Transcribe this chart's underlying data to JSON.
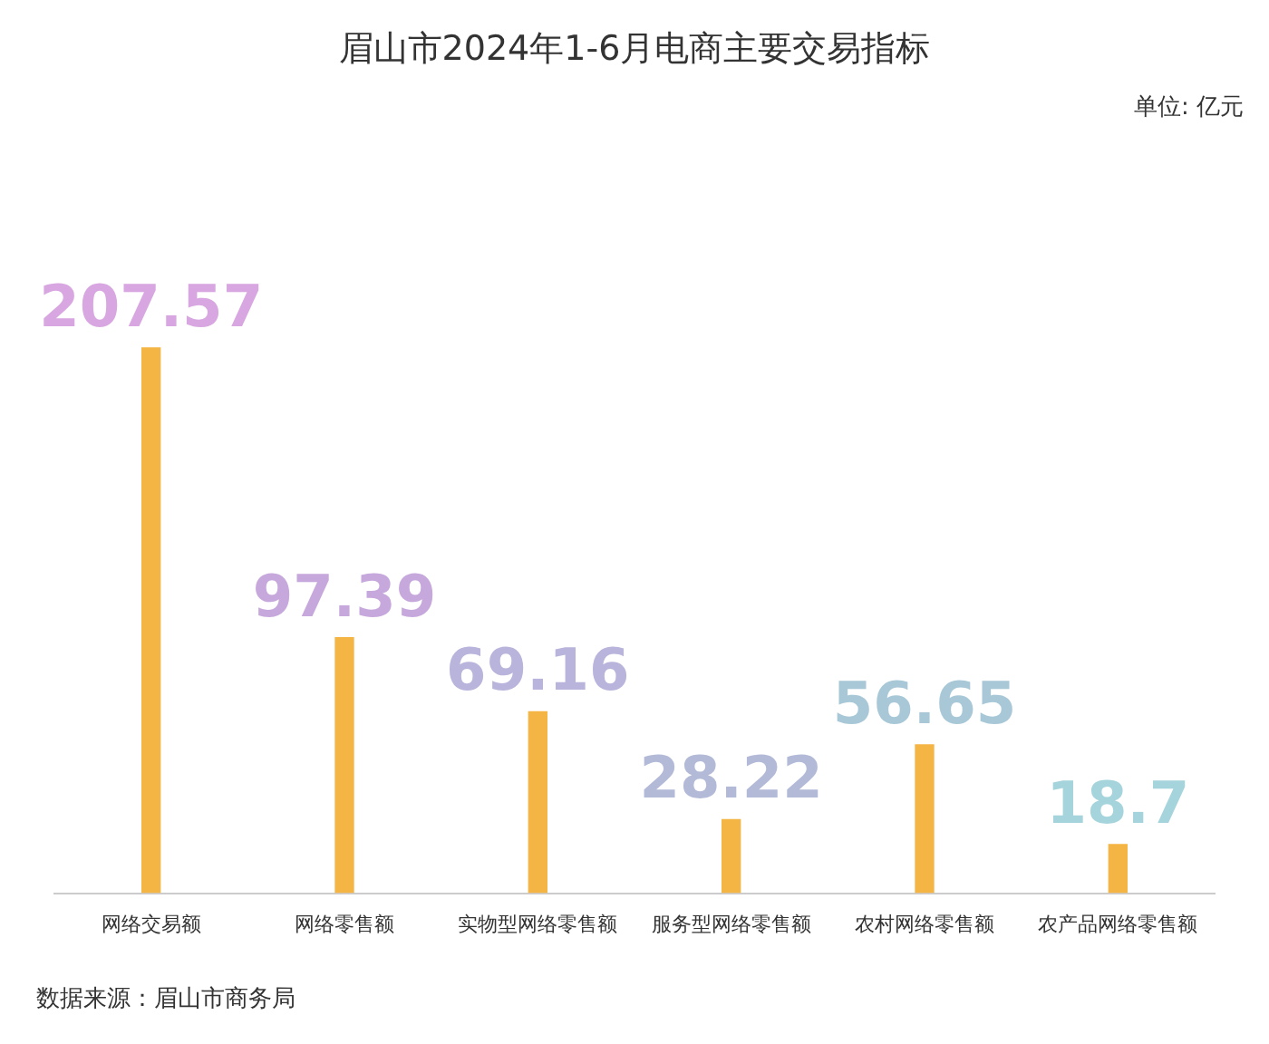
{
  "chart_data": {
    "type": "bar",
    "title": "眉山市2024年1-6月电商主要交易指标",
    "categories": [
      "网络交易额",
      "网络零售额",
      "实物型网络零售额",
      "服务型网络零售额",
      "农村网络零售额",
      "农产品网络零售额"
    ],
    "values": [
      207.57,
      97.39,
      69.16,
      28.22,
      56.65,
      18.7
    ],
    "color": "#f5b544",
    "data_labels": true,
    "grid": false,
    "legend": false,
    "annotations": [
      "单位: 亿元",
      "数据来源：眉山市商务局"
    ]
  }
}
